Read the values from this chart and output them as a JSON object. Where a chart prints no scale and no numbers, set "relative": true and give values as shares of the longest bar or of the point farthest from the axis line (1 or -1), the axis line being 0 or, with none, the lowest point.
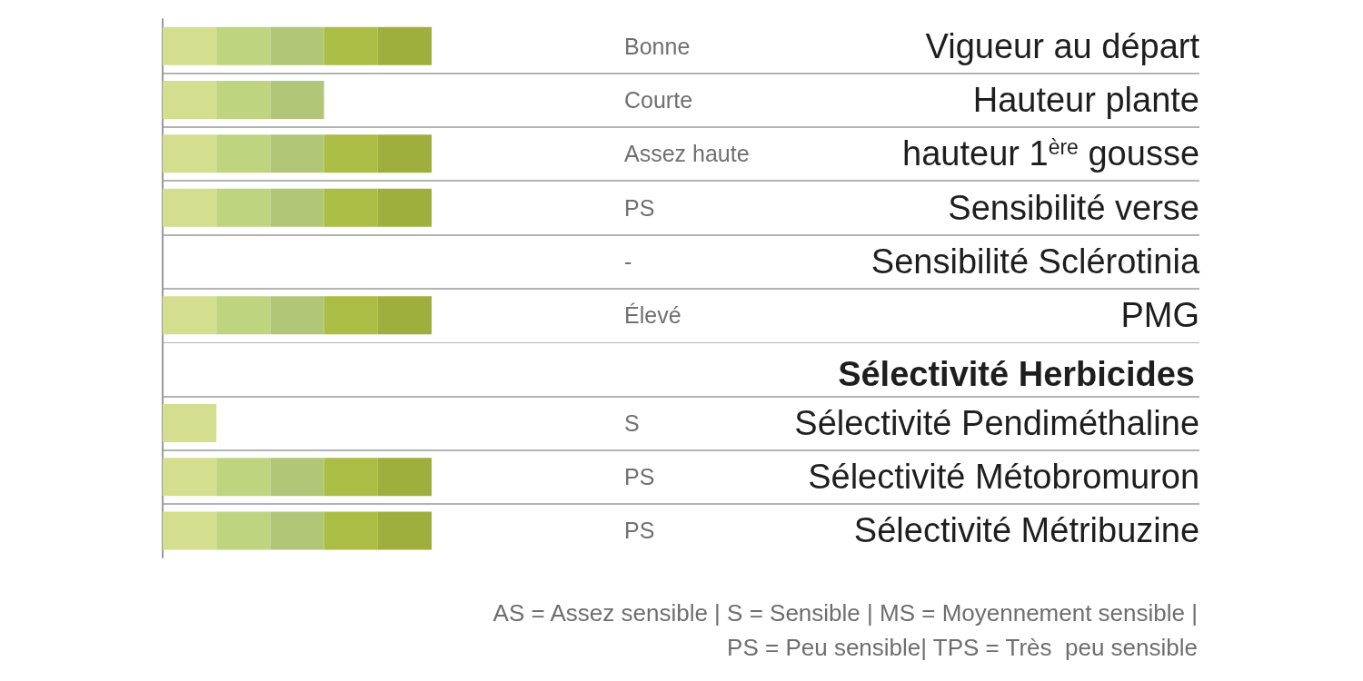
{
  "chart_data": [
    {
      "type": "bar",
      "orientation": "horizontal",
      "stacked": true,
      "relative": true,
      "grid": "y",
      "categories": [
        "Vigueur au départ",
        "Hauteur plante",
        "hauteur 1$^{ère}$ gousse",
        "Sensibilité verse",
        "Sensibilité Sclérotinia",
        "PMG"
      ],
      "series": [
        {
          "color": "#d3de8f",
          "values": [
            0.2,
            0.2,
            0.2,
            0.2,
            null,
            0.2
          ]
        },
        {
          "color": "#bed47f",
          "values": [
            0.2,
            0.2,
            0.2,
            0.2,
            null,
            0.2
          ]
        },
        {
          "color": "#b1c676",
          "values": [
            0.2,
            0.2,
            0.2,
            0.2,
            null,
            0.2
          ]
        },
        {
          "color": "#abbd44",
          "values": [
            0.2,
            null,
            0.2,
            0.2,
            null,
            0.2
          ]
        },
        {
          "color": "#9eaf3e",
          "values": [
            0.2,
            null,
            0.2,
            0.2,
            null,
            0.2
          ]
        }
      ],
      "annotations": [
        "Bonne",
        "Courte",
        "Assez haute",
        "PS",
        "-",
        "Élevé"
      ]
    },
    {
      "type": "bar",
      "orientation": "horizontal",
      "stacked": true,
      "relative": true,
      "grid": "y",
      "title": "Sélectivité Herbicides",
      "categories": [
        "Sélectivité Pendiméthaline",
        "Sélectivité Métobromuron",
        "Sélectivité Métribuzine"
      ],
      "series": [
        {
          "color": "#d3de8f",
          "values": [
            0.2,
            0.2,
            0.2
          ]
        },
        {
          "color": "#bed47f",
          "values": [
            null,
            0.2,
            0.2
          ]
        },
        {
          "color": "#b1c676",
          "values": [
            null,
            0.2,
            0.2
          ]
        },
        {
          "color": "#abbd44",
          "values": [
            null,
            0.2,
            0.2
          ]
        },
        {
          "color": "#9eaf3e",
          "values": [
            null,
            0.2,
            0.2
          ]
        }
      ],
      "annotations": [
        "S",
        "PS",
        "PS",
        "AS = Assez sensible | S = Sensible | MS = Moyennement sensible |",
        "PS = Peu sensible| TPS = Très  peu sensible"
      ]
    }
  ]
}
